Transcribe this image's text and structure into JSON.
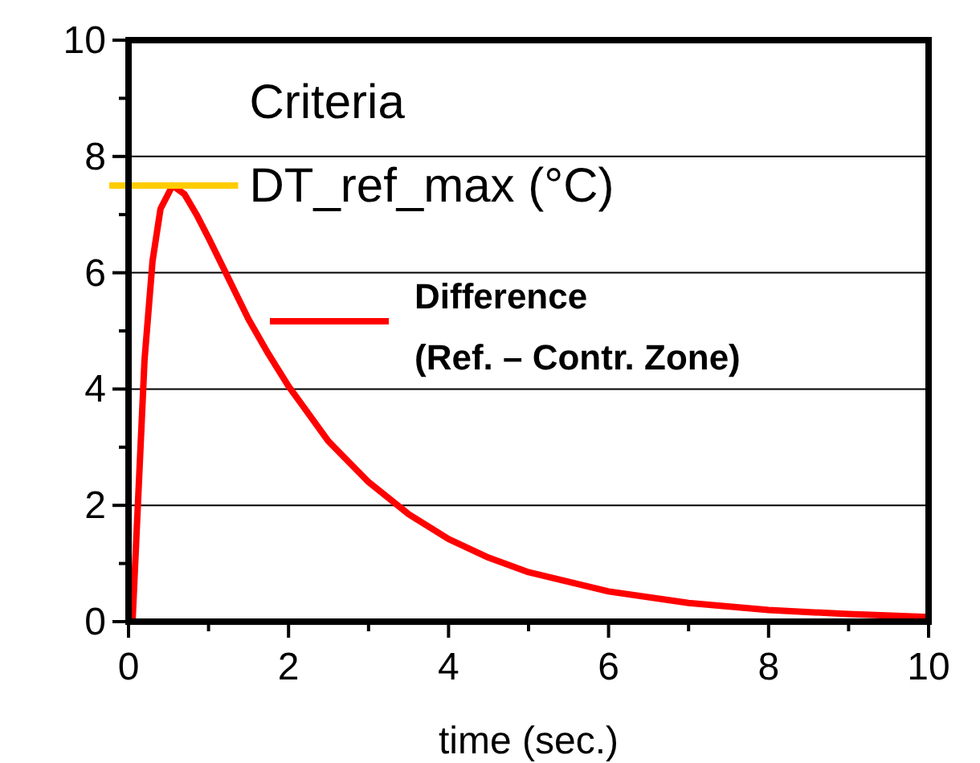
{
  "chart_data": {
    "type": "line",
    "xlabel": "time (sec.)",
    "xlim": [
      0,
      10
    ],
    "ylim": [
      0,
      10
    ],
    "xticks": [
      0,
      {
        "value": 1,
        "label": null
      },
      2,
      {
        "value": 3,
        "label": null
      },
      4,
      {
        "value": 5,
        "label": null
      },
      6,
      {
        "value": 7,
        "label": null
      },
      8,
      {
        "value": 9,
        "label": null
      },
      10
    ],
    "yticks": [
      0,
      {
        "value": 1,
        "label": null
      },
      2,
      {
        "value": 3,
        "label": null
      },
      4,
      {
        "value": 5,
        "label": null
      },
      6,
      {
        "value": 7,
        "label": null
      },
      8,
      {
        "value": 9,
        "label": null
      },
      10
    ],
    "grid": "y",
    "legend": "top right",
    "line_style": "solid",
    "ref_lines": [
      {
        "axis": "y",
        "value": 7.5,
        "label": "Criteria DT_ref_max (°C)",
        "color": "#ffcc00"
      }
    ],
    "series": [
      {
        "name": "Difference (Ref. – Contr. Zone)",
        "color": "#ff0000",
        "x": [
          0.05,
          0.1,
          0.2,
          0.3,
          0.4,
          0.55,
          0.7,
          0.85,
          1,
          1.25,
          1.5,
          1.75,
          2,
          2.5,
          3,
          3.5,
          4,
          4.5,
          5,
          6,
          7,
          8,
          9,
          10
        ],
        "values": [
          0,
          1.5,
          4.5,
          6.2,
          7.1,
          7.5,
          7.35,
          7,
          6.6,
          5.9,
          5.2,
          4.6,
          4.05,
          3.1,
          2.4,
          1.85,
          1.42,
          1.1,
          0.85,
          0.52,
          0.32,
          0.2,
          0.13,
          0.08
        ]
      }
    ]
  }
}
